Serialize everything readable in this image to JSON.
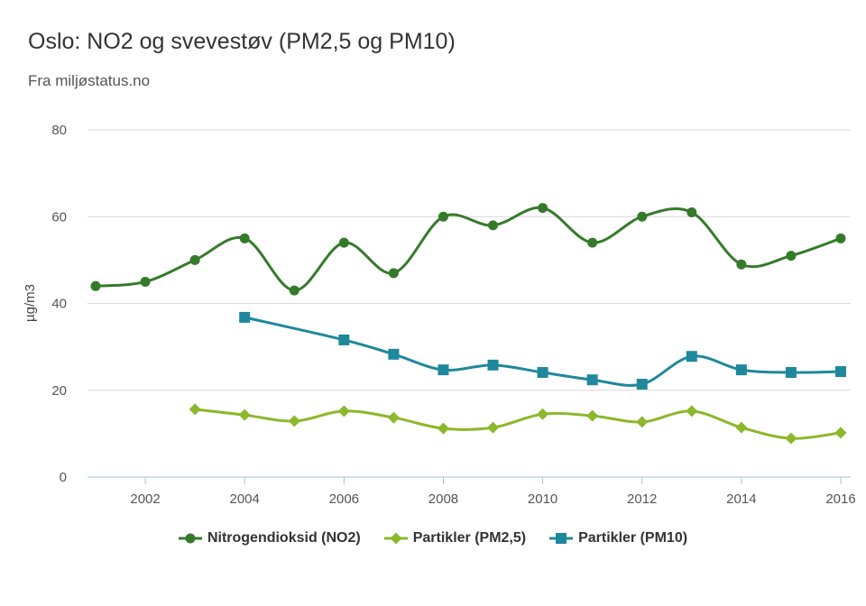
{
  "chart_data": {
    "type": "line",
    "title": "Oslo: NO2 og svevestøv (PM2,5 og PM10)",
    "subtitle": "Fra miljøstatus.no",
    "xlabel": "",
    "ylabel": "µg/m3",
    "ylim": [
      0,
      80
    ],
    "xlim": [
      2001,
      2016
    ],
    "yticks": [
      "0",
      "20",
      "40",
      "60",
      "80"
    ],
    "xticks": [
      "2002",
      "2004",
      "2006",
      "2008",
      "2010",
      "2012",
      "2014",
      "2016"
    ],
    "grid": true,
    "legend_position": "bottom",
    "series": [
      {
        "name": "Nitrogendioksid (NO2)",
        "color": "#357a2b",
        "marker": "circle",
        "x": [
          2001,
          2002,
          2003,
          2004,
          2005,
          2006,
          2007,
          2008,
          2009,
          2010,
          2011,
          2012,
          2013,
          2014,
          2015,
          2016
        ],
        "values": [
          44,
          45,
          50,
          55,
          43,
          54,
          47,
          60,
          58,
          62,
          54,
          60,
          61,
          49,
          51,
          55
        ]
      },
      {
        "name": "Partikler (PM2,5)",
        "color": "#8cb82b",
        "marker": "diamond",
        "x": [
          2003,
          2004,
          2005,
          2006,
          2007,
          2008,
          2009,
          2010,
          2011,
          2012,
          2013,
          2014,
          2015,
          2016
        ],
        "values": [
          15.6,
          14.3,
          12.9,
          15.2,
          13.7,
          11.2,
          11.4,
          14.5,
          14.1,
          12.7,
          15.2,
          11.4,
          8.9,
          10.2
        ]
      },
      {
        "name": "Partikler (PM10)",
        "color": "#1f889c",
        "marker": "square",
        "x": [
          2004,
          2006,
          2007,
          2008,
          2009,
          2010,
          2011,
          2012,
          2013,
          2014,
          2015,
          2016
        ],
        "values": [
          36.8,
          31.6,
          28.3,
          24.7,
          25.8,
          24.1,
          22.4,
          21.4,
          27.8,
          24.7,
          24.1,
          24.3
        ]
      }
    ]
  }
}
